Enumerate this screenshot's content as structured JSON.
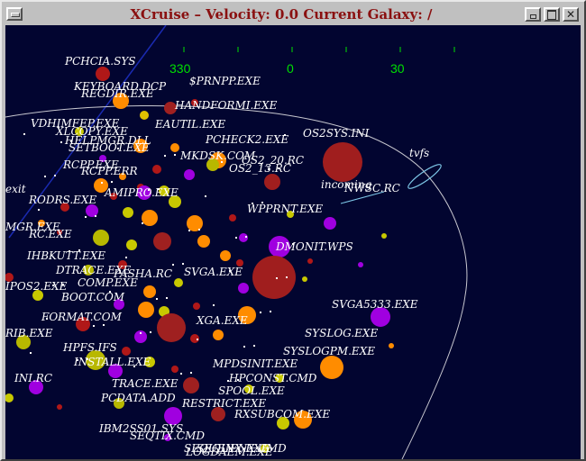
{
  "window": {
    "title": "XCruise – Velocity: 0.0  Current Galaxy: /",
    "menu_icon": "window-menu-icon",
    "buttons": [
      "minimize-icon",
      "maximize-icon",
      "close-icon"
    ]
  },
  "compass": {
    "ticks": [
      "330",
      "0",
      "30"
    ],
    "color": "#00e000"
  },
  "colors": {
    "background": "#020530",
    "title_text": "#8a1010",
    "label_text": "#ffffff",
    "orbit_line": "#c8c8d0",
    "axis_line": "#1a2ab0"
  },
  "galaxy": {
    "labels": [
      {
        "text": "PCHCIA.SYS"
      },
      {
        "text": "KEYBOARD.DCP"
      },
      {
        "text": "REGDIR.EXE"
      },
      {
        "text": "$PRNPP.EXE"
      },
      {
        "text": "HANDFORMI.EXE"
      },
      {
        "text": "VDHIMFEP.EXE"
      },
      {
        "text": "EAUTIL.EXE"
      },
      {
        "text": "XLCOPY.EXE"
      },
      {
        "text": "PCHECK2.EXE"
      },
      {
        "text": "HELPMGR.DLL"
      },
      {
        "text": "OS2SYS.INI"
      },
      {
        "text": "SETBOOT.EXE"
      },
      {
        "text": "tvfs"
      },
      {
        "text": "RCPP.EXE"
      },
      {
        "text": "MKDSK.COM"
      },
      {
        "text": "OS2_20.RC"
      },
      {
        "text": "OS2_13.RC"
      },
      {
        "text": "incoming"
      },
      {
        "text": "NWSC.RC"
      },
      {
        "text": "RCPP.ERR"
      },
      {
        "text": "exit"
      },
      {
        "text": "RODRS.EXE"
      },
      {
        "text": "AMIPRO.EXE"
      },
      {
        "text": "WPPRNT.EXE"
      },
      {
        "text": "MGR.EXE"
      },
      {
        "text": "RC.EXE"
      },
      {
        "text": "DMONIT.WPS"
      },
      {
        "text": "IHBKUTT.EXE"
      },
      {
        "text": "DTRACE.EXE"
      },
      {
        "text": "SVGA.EXE"
      },
      {
        "text": "IPOS2.EXE"
      },
      {
        "text": "BOOT.COM"
      },
      {
        "text": "COMP.EXE"
      },
      {
        "text": "PASHA.RC"
      },
      {
        "text": "FORMAT.COM"
      },
      {
        "text": "SVGA5333.EXE"
      },
      {
        "text": "XGA.EXE"
      },
      {
        "text": "RIB.EXE"
      },
      {
        "text": "SYSLOG.EXE"
      },
      {
        "text": "HPFS.IFS"
      },
      {
        "text": "SYSLOGPM.EXE"
      },
      {
        "text": "INSTALL.EXE"
      },
      {
        "text": "MPDSINIT.EXE"
      },
      {
        "text": "INI.RC"
      },
      {
        "text": "TRACE.EXE"
      },
      {
        "text": "HPCONST.CMD"
      },
      {
        "text": "SPOOL.EXE"
      },
      {
        "text": "PCDATA.ADD"
      },
      {
        "text": "RESTRICT.EXE"
      },
      {
        "text": "RXSUBCOM.EXE"
      },
      {
        "text": "IBM2SS01.SYS"
      },
      {
        "text": "SEQTIX.CMD"
      },
      {
        "text": "SEQUENX.EXE"
      },
      {
        "text": "SEQUENX.CMD"
      },
      {
        "text": "LOGDAEM.EXE"
      }
    ]
  }
}
